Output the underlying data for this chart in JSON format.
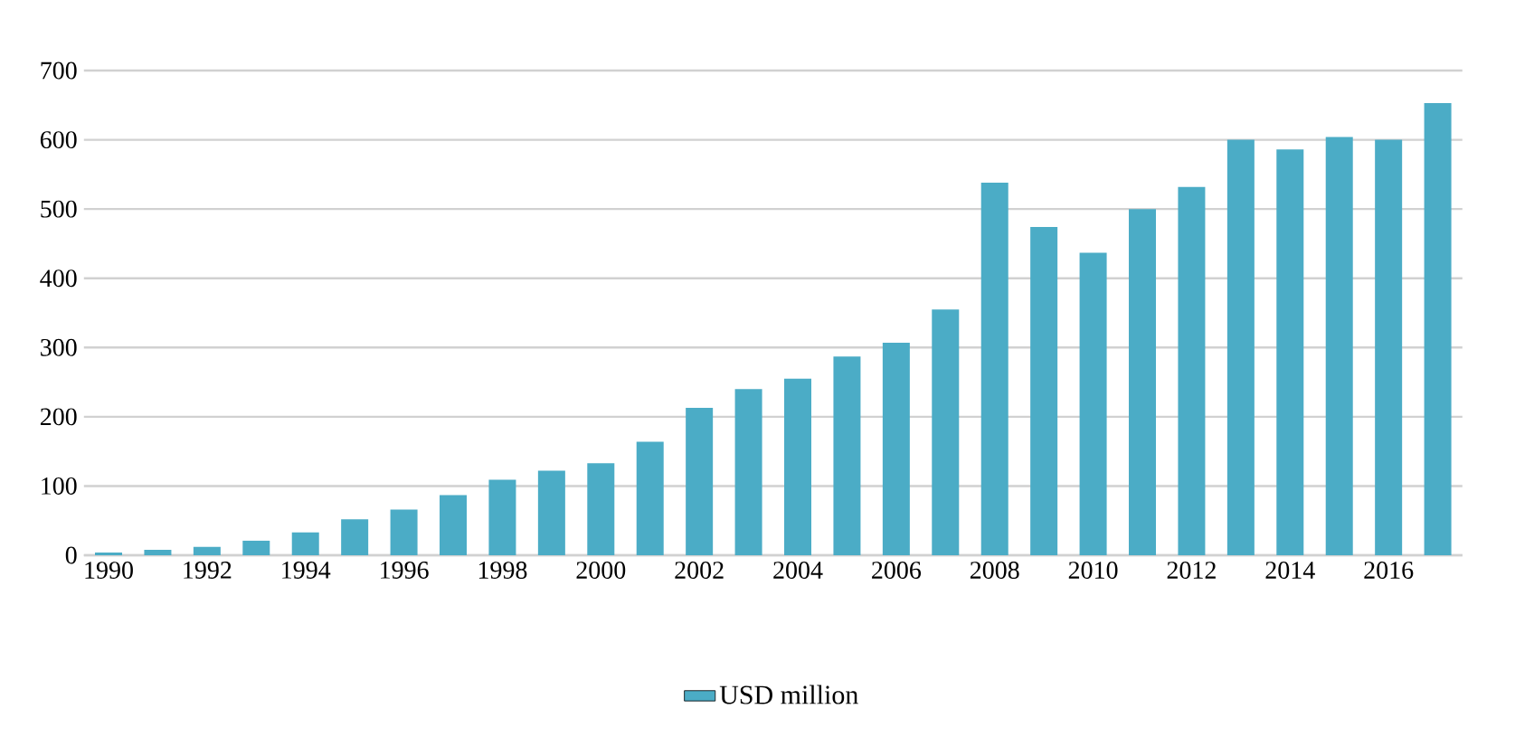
{
  "chart_data": {
    "type": "bar",
    "categories": [
      "1990",
      null,
      "1992",
      null,
      "1994",
      null,
      "1996",
      null,
      "1998",
      null,
      "2000",
      null,
      "2002",
      null,
      "2004",
      null,
      "2006",
      null,
      "2008",
      null,
      "2010",
      null,
      "2012",
      null,
      "2014",
      null,
      "2016",
      null
    ],
    "series": [
      {
        "name": "USD million",
        "color": "#4bacc6",
        "values": [
          4,
          8,
          12,
          21,
          33,
          52,
          66,
          87,
          109,
          122,
          133,
          164,
          213,
          240,
          255,
          287,
          307,
          355,
          538,
          474,
          437,
          500,
          532,
          600,
          586,
          604,
          600,
          653
        ]
      }
    ],
    "ylim": [
      0,
      700
    ],
    "yticks": [
      0,
      100,
      200,
      300,
      400,
      500,
      600,
      700
    ],
    "grid": "y",
    "legend": "bottom"
  }
}
